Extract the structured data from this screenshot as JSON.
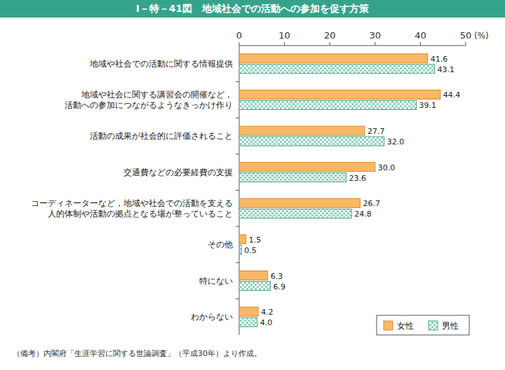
{
  "chart_data": {
    "type": "bar",
    "orientation": "horizontal",
    "title": "Ⅰ－特－41図　地域社会での活動への参加を促す方策",
    "x_label": "(%)",
    "note": "（備考）内閣府「生涯学習に関する世論調査」（平成30年）より作成。",
    "categories": [
      "地域や社会での活動に関する情報提供",
      "地域や社会に関する講習会の開催など，\n活動への参加につながるようなきっかけ作り",
      "活動の成果が社会的に評価されること",
      "交通費などの必要経費の支援",
      "コーディネーターなど，地域や社会での活動を支える\n人的体制や活動の拠点となる場が整っていること",
      "その他",
      "特にない",
      "わからない"
    ],
    "series": [
      {
        "name": "女性",
        "color": "#f8b865",
        "values": [
          41.6,
          44.4,
          27.7,
          30.0,
          26.7,
          1.5,
          6.3,
          4.2
        ],
        "value_labels": [
          "41.6",
          "44.4",
          "27.7",
          "30.0",
          "26.7",
          "1.5",
          "6.3",
          "4.2"
        ]
      },
      {
        "name": "男性",
        "color": "#8fd1bd",
        "values": [
          43.1,
          39.1,
          32.0,
          23.6,
          24.8,
          0.5,
          6.9,
          4.0
        ],
        "value_labels": [
          "43.1",
          "39.1",
          "32.0",
          "23.6",
          "24.8",
          "0.5",
          "6.9",
          "4.0"
        ]
      }
    ],
    "xlim": [
      0,
      50
    ],
    "xticks": [
      0,
      10,
      20,
      30,
      40,
      50
    ],
    "grid": false,
    "legend": "bottom-right",
    "data_labels": true
  }
}
